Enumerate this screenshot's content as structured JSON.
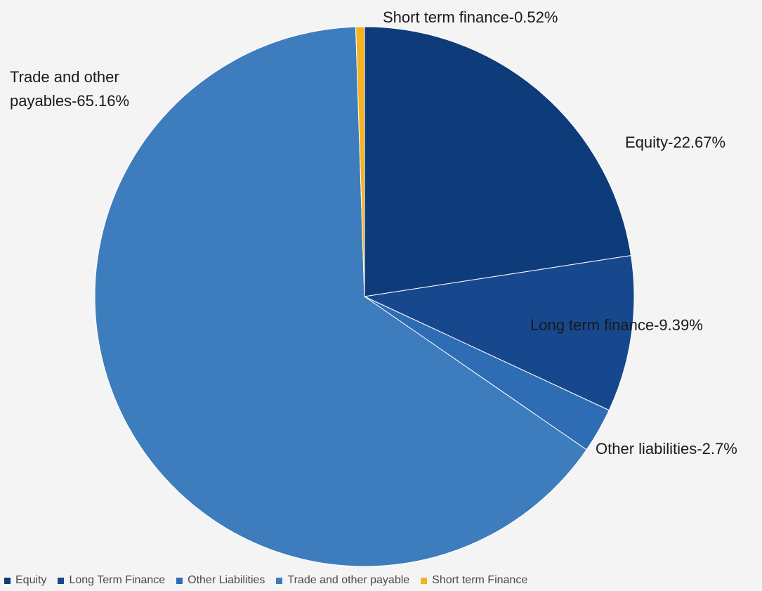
{
  "chart_data": {
    "type": "pie",
    "title": "",
    "slices": [
      {
        "name": "Equity",
        "value": 22.67,
        "label": "Equity-22.67%",
        "color": "#0e3b7a"
      },
      {
        "name": "Long Term Finance",
        "value": 9.39,
        "label": "Long term finance-9.39%",
        "color": "#17478d"
      },
      {
        "name": "Other Liabilities",
        "value": 2.7,
        "label": "Other liabilities-2.7%",
        "color": "#2e6cb3"
      },
      {
        "name": "Trade and other payable",
        "value": 65.16,
        "label_lines": [
          "Trade and other",
          "payables-65.16%"
        ],
        "color": "#3d7dbd"
      },
      {
        "name": "Short term Finance",
        "value": 0.52,
        "label": "Short term finance-0.52%",
        "color": "#f5b323"
      }
    ],
    "legend_position": "bottom-left"
  }
}
